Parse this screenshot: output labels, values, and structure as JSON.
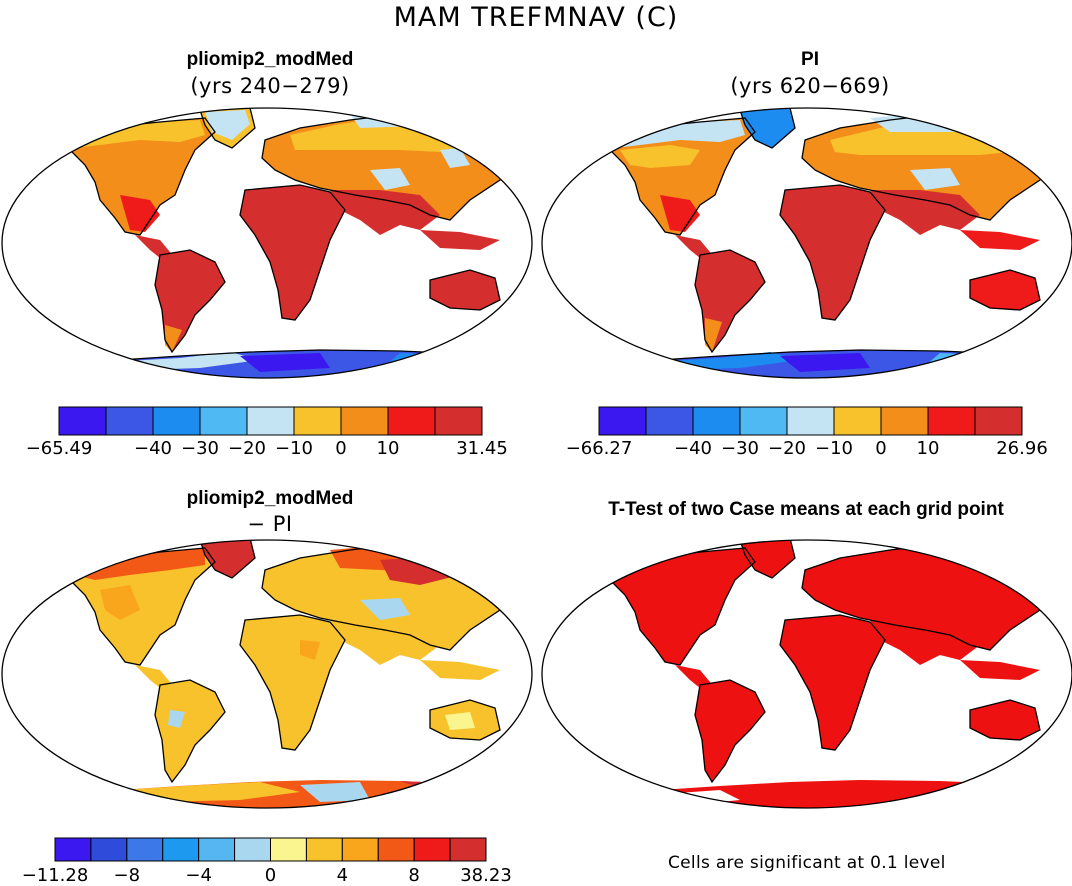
{
  "figure": {
    "title": "MAM TREFMNAV (C)",
    "significance_note": "Cells are significant at 0.1 level"
  },
  "panels": {
    "top_left": {
      "title": "pliomip2_modMed",
      "subtitle": "(yrs 240−279)"
    },
    "top_right": {
      "title": "PI",
      "subtitle": "(yrs 620−669)"
    },
    "bottom_left": {
      "title": "pliomip2_modMed",
      "subtitle": "− PI"
    },
    "bottom_right": {
      "title": "T-Test of two Case means at each grid point",
      "subtitle": ""
    }
  },
  "colorbars": {
    "top_left": {
      "colors": [
        "#3b18f0",
        "#3c57e6",
        "#1d8cf0",
        "#4fb9f3",
        "#c4e3f3",
        "#f7c22c",
        "#f38e1b",
        "#ef1a1a",
        "#d42e2e"
      ],
      "ticks": [
        "−65.49",
        "−40",
        "−30",
        "−20",
        "−10",
        "0",
        "10",
        "31.45"
      ]
    },
    "top_right": {
      "colors": [
        "#3b18f0",
        "#3c57e6",
        "#1d8cf0",
        "#4fb9f3",
        "#c4e3f3",
        "#f7c22c",
        "#f38e1b",
        "#ef1a1a",
        "#d42e2e"
      ],
      "ticks": [
        "−66.27",
        "−40",
        "−30",
        "−20",
        "−10",
        "0",
        "10",
        "26.96"
      ]
    },
    "bottom_left": {
      "colors": [
        "#3b18f0",
        "#2f4bd9",
        "#3c78e8",
        "#1d99ef",
        "#56b7f0",
        "#a9d7ef",
        "#fbf590",
        "#f7c22c",
        "#f9a61c",
        "#f25916",
        "#ef1a1a",
        "#d42e2e"
      ],
      "ticks": [
        "−11.28",
        "−8",
        "−4",
        "0",
        "4",
        "8",
        "38.23"
      ]
    }
  },
  "colors": {
    "warm": "#d42e2e",
    "red": "#ef1a1a",
    "orange": "#f38e1b",
    "yellow": "#f7c22c",
    "pale_blue": "#c4e3f3",
    "light_blue": "#4fb9f3",
    "blue": "#1d8cf0",
    "deep_blue": "#3b18f0",
    "ttest_red": "#ee1111"
  }
}
